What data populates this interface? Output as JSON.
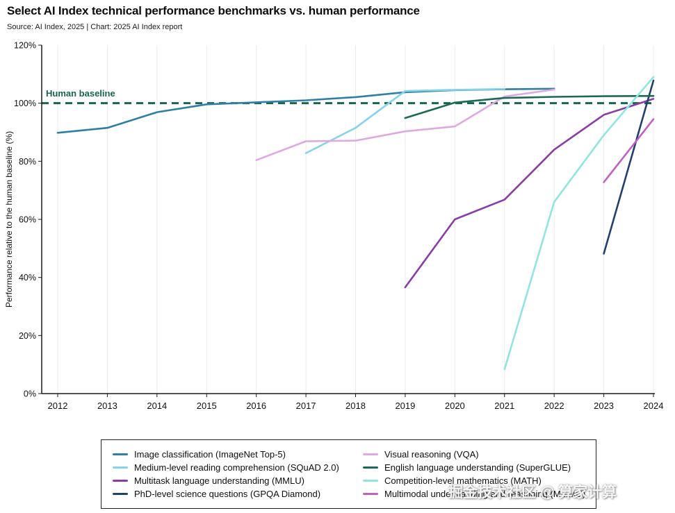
{
  "header": {
    "title": "Select AI Index technical performance benchmarks vs. human performance",
    "source": "Source: AI Index, 2025 | Chart: 2025 AI Index report"
  },
  "watermark": "掘金技术社区 @ 算家计算",
  "chart_data": {
    "type": "line",
    "title": "Select AI Index technical performance benchmarks vs. human performance",
    "xlabel": "",
    "ylabel": "Performance relative to the human baseline (%)",
    "ylim": [
      0,
      120
    ],
    "xlim": [
      2012,
      2024
    ],
    "y_ticks": [
      0,
      20,
      40,
      60,
      80,
      100,
      120
    ],
    "x_ticks": [
      2012,
      2013,
      2014,
      2015,
      2016,
      2017,
      2018,
      2019,
      2020,
      2021,
      2022,
      2023,
      2024
    ],
    "grid": "vertical-year-lines",
    "legend_position": "bottom-center",
    "baseline": {
      "label": "Human baseline",
      "value": 100,
      "color": "#17654f",
      "style": "dashed"
    },
    "series": [
      {
        "id": "imagenet",
        "name": "Image classification (ImageNet Top-5)",
        "color": "#2d7fa5",
        "x": [
          2012,
          2013,
          2014,
          2015,
          2016,
          2017,
          2018,
          2019,
          2020,
          2021,
          2022
        ],
        "y": [
          89.8,
          91.5,
          96.9,
          99.6,
          100.3,
          101.0,
          102.1,
          103.8,
          104.5,
          104.8,
          105.0
        ]
      },
      {
        "id": "squad",
        "name": "Medium-level reading comprehension (SQuAD 2.0)",
        "color": "#85d2ea",
        "x": [
          2017,
          2018,
          2019,
          2020,
          2021
        ],
        "y": [
          82.8,
          91.5,
          104.2,
          104.6,
          104.9
        ]
      },
      {
        "id": "mmlu",
        "name": "Multitask language understanding (MMLU)",
        "color": "#8a3ca8",
        "x": [
          2019,
          2020,
          2021,
          2022,
          2023,
          2024
        ],
        "y": [
          36.6,
          60.0,
          66.8,
          84.0,
          96.0,
          101.5
        ]
      },
      {
        "id": "gpqa",
        "name": "PhD-level science questions (GPQA Diamond)",
        "color": "#22406f",
        "x": [
          2023,
          2024
        ],
        "y": [
          48.2,
          107.8
        ]
      },
      {
        "id": "vqa",
        "name": "Visual reasoning (VQA)",
        "color": "#dfa8e2",
        "x": [
          2016,
          2017,
          2018,
          2019,
          2020,
          2021,
          2022
        ],
        "y": [
          80.4,
          86.9,
          87.1,
          90.3,
          92.0,
          102.3,
          104.7
        ]
      },
      {
        "id": "superglue",
        "name": "English language understanding (SuperGLUE)",
        "color": "#1a6a57",
        "x": [
          2019,
          2020,
          2021,
          2022,
          2023,
          2024
        ],
        "y": [
          94.9,
          100.2,
          101.8,
          102.2,
          102.4,
          102.5
        ]
      },
      {
        "id": "math",
        "name": "Competition-level mathematics (MATH)",
        "color": "#8fe5e0",
        "x": [
          2021,
          2022,
          2023,
          2024
        ],
        "y": [
          8.4,
          66.0,
          89.0,
          109.0
        ]
      },
      {
        "id": "mmmu",
        "name": "Multimodal understanding and reasoning (MMMU)",
        "color": "#c05fc4",
        "x": [
          2023,
          2024
        ],
        "y": [
          72.8,
          94.5
        ]
      }
    ]
  }
}
